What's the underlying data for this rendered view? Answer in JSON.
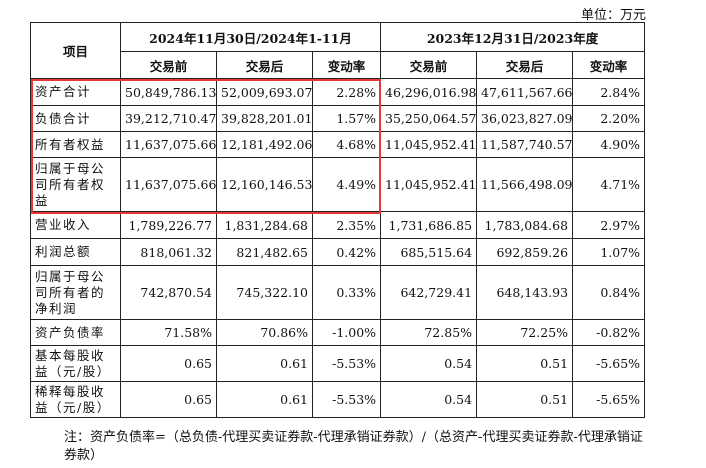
{
  "unit_label": "单位：万元",
  "header": {
    "item": "项目",
    "period1": "2024年11月30日/2024年1-11月",
    "period2": "2023年12月31日/2023年度",
    "sub": [
      "交易前",
      "交易后",
      "变动率",
      "交易前",
      "交易后",
      "变动率"
    ]
  },
  "rows": [
    {
      "name": "资产合计",
      "v": [
        "50,849,786.13",
        "52,009,693.07",
        "2.28%",
        "46,296,016.98",
        "47,611,567.66",
        "2.84%"
      ]
    },
    {
      "name": "负债合计",
      "v": [
        "39,212,710.47",
        "39,828,201.01",
        "1.57%",
        "35,250,064.57",
        "36,023,827.09",
        "2.20%"
      ]
    },
    {
      "name": "所有者权益",
      "v": [
        "11,637,075.66",
        "12,181,492.06",
        "4.68%",
        "11,045,952.41",
        "11,587,740.57",
        "4.90%"
      ]
    },
    {
      "name": "归属于母公司所有者权益",
      "v": [
        "11,637,075.66",
        "12,160,146.53",
        "4.49%",
        "11,045,952.41",
        "11,566,498.09",
        "4.71%"
      ]
    },
    {
      "name": "营业收入",
      "v": [
        "1,789,226.77",
        "1,831,284.68",
        "2.35%",
        "1,731,686.85",
        "1,783,084.68",
        "2.97%"
      ]
    },
    {
      "name": "利润总额",
      "v": [
        "818,061.32",
        "821,482.65",
        "0.42%",
        "685,515.64",
        "692,859.26",
        "1.07%"
      ]
    },
    {
      "name": "归属于母公司所有者的净利润",
      "v": [
        "742,870.54",
        "745,322.10",
        "0.33%",
        "642,729.41",
        "648,143.93",
        "0.84%"
      ]
    },
    {
      "name": "资产负债率",
      "v": [
        "71.58%",
        "70.86%",
        "-1.00%",
        "72.85%",
        "72.25%",
        "-0.82%"
      ]
    },
    {
      "name": "基本每股收益（元/股）",
      "v": [
        "0.65",
        "0.61",
        "-5.53%",
        "0.54",
        "0.51",
        "-5.65%"
      ]
    },
    {
      "name": "稀释每股收益（元/股）",
      "v": [
        "0.65",
        "0.61",
        "-5.53%",
        "0.54",
        "0.51",
        "-5.65%"
      ]
    }
  ],
  "note": "注：资产负债率=（总负债-代理买卖证券款-代理承销证券款）/（总资产-代理买卖证券款-代理承销证券款）",
  "highlight_color": "#e53935"
}
